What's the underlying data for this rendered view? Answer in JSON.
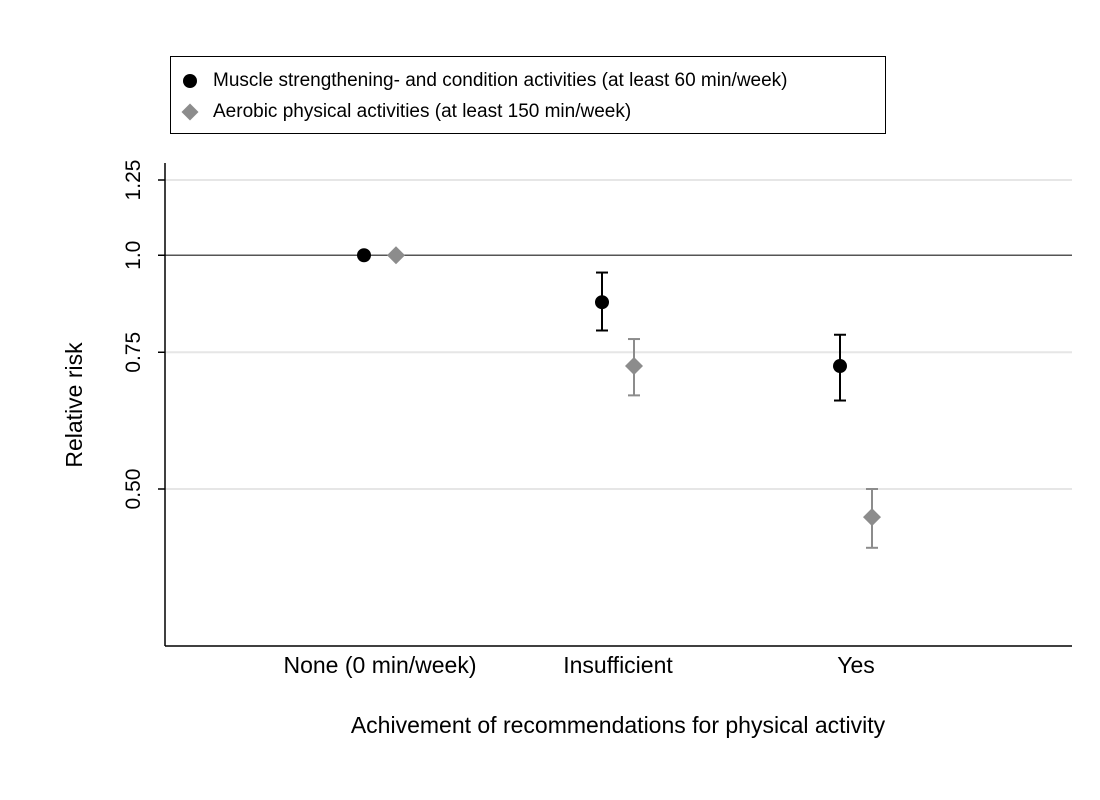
{
  "chart_data": {
    "type": "scatter",
    "xlabel": "Achivement of recommendations for physical activity",
    "ylabel": "Relative risk",
    "categories": [
      "None (0 min/week)",
      "Insufficient",
      "Yes"
    ],
    "y_scale": "log",
    "ylim": [
      0.35,
      1.25
    ],
    "yticks": [
      0.5,
      0.75,
      1.0,
      1.25
    ],
    "ytick_labels": [
      "0.50",
      "0.75",
      "1.0",
      "1.25"
    ],
    "grid": true,
    "reference_line": 1.0,
    "legend_position": "top",
    "series": [
      {
        "name": "Muscle strengthening- and condition activities (at least 60 min/week)",
        "marker": "circle",
        "color": "#000000",
        "values": [
          1.0,
          0.87,
          0.72
        ],
        "ci_low": [
          1.0,
          0.8,
          0.65
        ],
        "ci_high": [
          1.0,
          0.95,
          0.79
        ]
      },
      {
        "name": "Aerobic physical activities (at least 150 min/week)",
        "marker": "diamond",
        "color": "#8c8c8c",
        "values": [
          1.0,
          0.72,
          0.46
        ],
        "ci_low": [
          1.0,
          0.66,
          0.42
        ],
        "ci_high": [
          1.0,
          0.78,
          0.5
        ]
      }
    ]
  }
}
